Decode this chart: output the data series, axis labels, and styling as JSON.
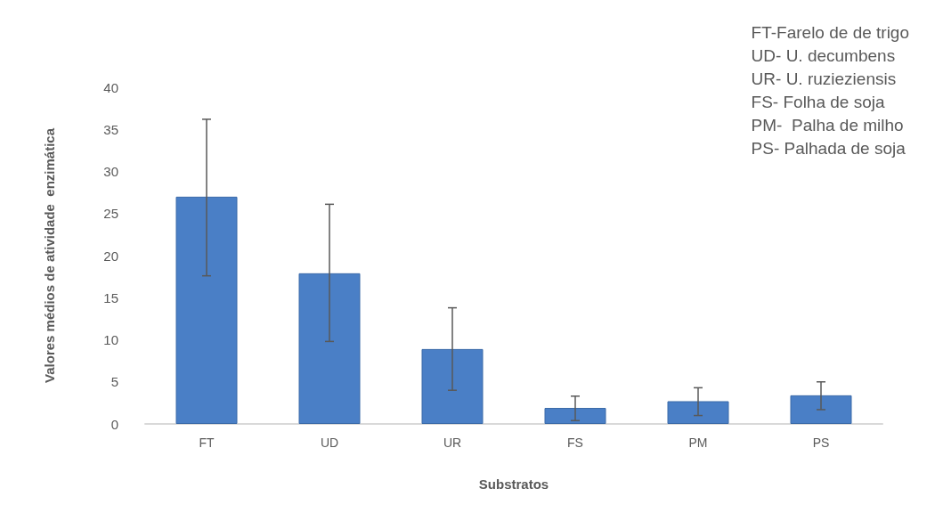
{
  "chart_data": {
    "type": "bar",
    "xlabel": "Substratos",
    "ylabel": "Valores médios de atividade  enzimática",
    "categories": [
      "FT",
      "UD",
      "UR",
      "FS",
      "PM",
      "PS"
    ],
    "values": [
      27.0,
      17.9,
      8.9,
      1.9,
      2.7,
      3.4
    ],
    "errors": [
      [
        17.6,
        36.2
      ],
      [
        9.8,
        26.1
      ],
      [
        4.0,
        13.8
      ],
      [
        0.4,
        3.3
      ],
      [
        1.0,
        4.3
      ],
      [
        1.7,
        5.0
      ]
    ],
    "color": "#4a7fc6",
    "ylim": [
      0,
      40
    ],
    "yticks": [
      0,
      5,
      10,
      15,
      20,
      25,
      30,
      35,
      40
    ],
    "grid": false,
    "annotations": [
      "FT-Farelo de de trigo",
      "UD- U. decumbens",
      "UR- U. ruzieziensis",
      "FS- Folha de soja",
      "PM-  Palha de milho",
      "PS- Palhada de soja"
    ]
  }
}
